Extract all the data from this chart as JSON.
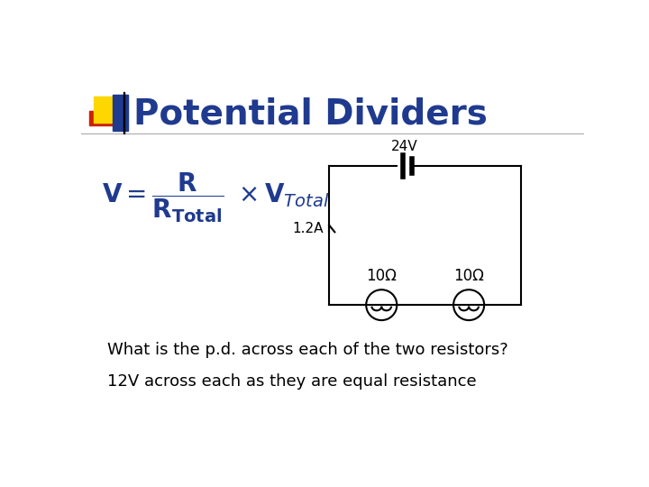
{
  "title": "Potential Dividers",
  "title_color": "#1F3A8F",
  "title_fontsize": 28,
  "bg_color": "#FFFFFF",
  "voltage_label": "24V",
  "current_label": "1.2A",
  "resistor1_label": "10Ω",
  "resistor2_label": "10Ω",
  "question_text": "What is the p.d. across each of the two resistors?",
  "answer_text": "12V across each as they are equal resistance",
  "question_fontsize": 13,
  "answer_fontsize": 13,
  "circuit_color": "#000000",
  "line_width": 1.5,
  "formula_color": "#1F3A8F",
  "formula_fontsize": 20,
  "accent_yellow": "#FFD700",
  "accent_red": "#CC2200",
  "accent_blue": "#1F3A8F"
}
